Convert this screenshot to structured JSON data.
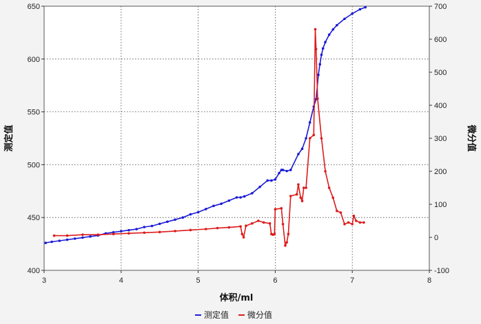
{
  "chart_data": {
    "type": "line",
    "xlabel": "体积/ml",
    "ylabel_left": "测定值",
    "ylabel_right": "微分值",
    "xlim": [
      3,
      8
    ],
    "ylim_left": [
      400,
      650
    ],
    "ylim_right": [
      -100,
      700
    ],
    "xticks": [
      3,
      4,
      5,
      6,
      7,
      8
    ],
    "yticks_left": [
      400,
      450,
      500,
      550,
      600,
      650
    ],
    "yticks_right": [
      -100,
      0,
      100,
      200,
      300,
      400,
      500,
      600,
      700
    ],
    "grid": true,
    "legend_placement": "bottom-center",
    "series": [
      {
        "name": "测定值",
        "axis": "left",
        "color": "#1a1ad6",
        "x": [
          3.02,
          3.1,
          3.2,
          3.3,
          3.4,
          3.5,
          3.6,
          3.7,
          3.8,
          3.9,
          4.0,
          4.1,
          4.2,
          4.3,
          4.4,
          4.5,
          4.6,
          4.7,
          4.8,
          4.9,
          5.0,
          5.1,
          5.2,
          5.3,
          5.4,
          5.5,
          5.55,
          5.6,
          5.7,
          5.8,
          5.9,
          5.95,
          6.0,
          6.05,
          6.08,
          6.1,
          6.15,
          6.2,
          6.3,
          6.35,
          6.4,
          6.45,
          6.5,
          6.53,
          6.56,
          6.58,
          6.6,
          6.62,
          6.65,
          6.7,
          6.75,
          6.8,
          6.9,
          7.0,
          7.1,
          7.17
        ],
        "y": [
          426,
          427,
          428,
          429,
          430,
          431,
          432,
          433,
          435,
          436,
          437,
          438,
          439,
          441,
          442,
          444,
          446,
          448,
          450,
          453,
          455,
          458,
          461,
          463,
          466,
          469,
          469,
          470,
          473,
          479,
          485,
          485,
          486,
          492,
          495,
          495,
          494,
          495,
          510,
          515,
          525,
          540,
          555,
          562,
          585,
          595,
          604,
          610,
          616,
          623,
          628,
          632,
          638,
          643,
          647,
          649
        ]
      },
      {
        "name": "微分值",
        "axis": "right",
        "color": "#dd1a1a",
        "x": [
          3.13,
          3.3,
          3.5,
          3.7,
          3.9,
          4.1,
          4.3,
          4.5,
          4.7,
          4.9,
          5.1,
          5.25,
          5.4,
          5.55,
          5.57,
          5.59,
          5.62,
          5.7,
          5.78,
          5.85,
          5.93,
          5.95,
          5.97,
          5.99,
          6.0,
          6.08,
          6.1,
          6.13,
          6.15,
          6.17,
          6.2,
          6.28,
          6.3,
          6.33,
          6.35,
          6.37,
          6.4,
          6.45,
          6.5,
          6.52,
          6.53,
          6.55,
          6.6,
          6.65,
          6.7,
          6.75,
          6.8,
          6.85,
          6.9,
          6.95,
          7.0,
          7.02,
          7.05,
          7.1,
          7.15
        ],
        "y": [
          5,
          5,
          8,
          8,
          10,
          12,
          14,
          16,
          19,
          22,
          25,
          28,
          30,
          33,
          10,
          0,
          35,
          42,
          50,
          45,
          42,
          10,
          8,
          10,
          85,
          88,
          40,
          -25,
          -15,
          10,
          125,
          130,
          160,
          120,
          110,
          150,
          150,
          300,
          310,
          630,
          570,
          420,
          300,
          200,
          150,
          120,
          80,
          75,
          40,
          45,
          40,
          65,
          50,
          45,
          45
        ]
      }
    ]
  }
}
